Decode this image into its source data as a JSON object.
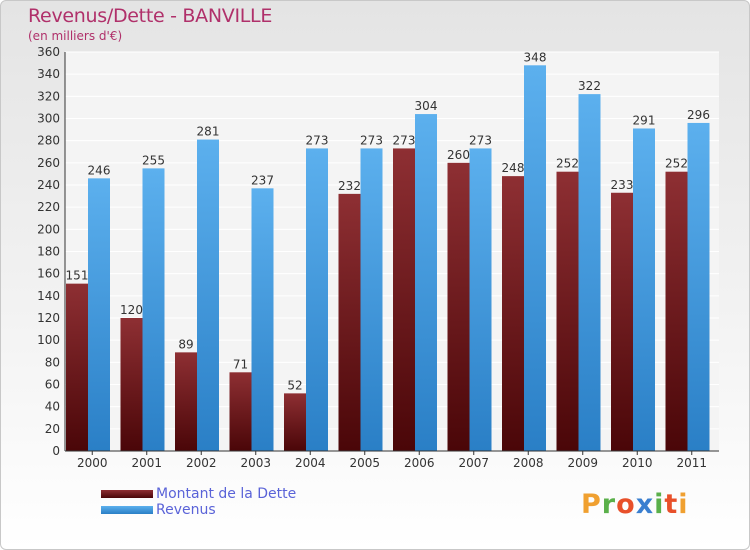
{
  "header": {
    "title": "Revenus/Dette - BANVILLE",
    "subtitle": "(en milliers d'€)"
  },
  "chart_data": {
    "type": "bar",
    "categories": [
      "2000",
      "2001",
      "2002",
      "2003",
      "2004",
      "2005",
      "2006",
      "2007",
      "2008",
      "2009",
      "2010",
      "2011"
    ],
    "series": [
      {
        "name": "Montant de la Dette",
        "color": "#7a1e22",
        "values": [
          151,
          120,
          89,
          71,
          52,
          232,
          273,
          260,
          248,
          252,
          233,
          252
        ]
      },
      {
        "name": "Revenus",
        "color": "#4aa3e8",
        "values": [
          246,
          255,
          281,
          237,
          273,
          273,
          304,
          273,
          348,
          322,
          291,
          296
        ]
      }
    ],
    "ylim": [
      0,
      360
    ],
    "yticks": [
      0,
      20,
      40,
      60,
      80,
      100,
      120,
      140,
      160,
      180,
      200,
      220,
      240,
      260,
      280,
      300,
      320,
      340,
      360
    ],
    "grid": true,
    "legend": "bottom-left"
  },
  "branding": {
    "logo_text": "Proxiti",
    "logo_colors": [
      "#f0a030",
      "#5ab04a",
      "#e8502a",
      "#3a7fd0",
      "#5ab04a",
      "#e8502a",
      "#f0a030"
    ]
  }
}
